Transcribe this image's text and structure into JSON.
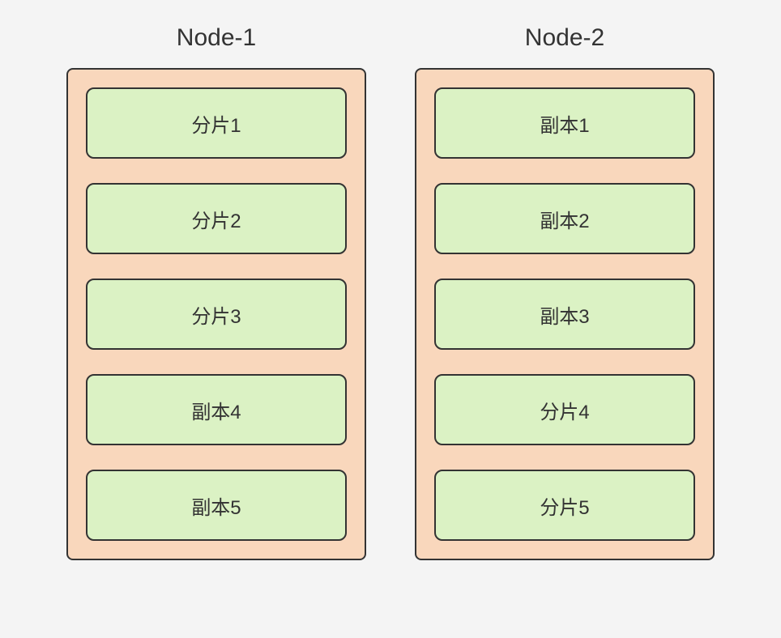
{
  "diagram": {
    "type": "infographic",
    "background_color": "#f4f4f4",
    "node_box_color": "#f9d7bc",
    "shard_box_color": "#dbf2c4",
    "border_color": "#333333",
    "text_color": "#333333",
    "title_fontsize": 30,
    "label_fontsize": 24,
    "border_width": 2,
    "border_radius_outer": 8,
    "border_radius_inner": 10,
    "nodes": [
      {
        "title": "Node-1",
        "items": [
          "分片1",
          "分片2",
          "分片3",
          "副本4",
          "副本5"
        ]
      },
      {
        "title": "Node-2",
        "items": [
          "副本1",
          "副本2",
          "副本3",
          "分片4",
          "分片5"
        ]
      }
    ]
  }
}
